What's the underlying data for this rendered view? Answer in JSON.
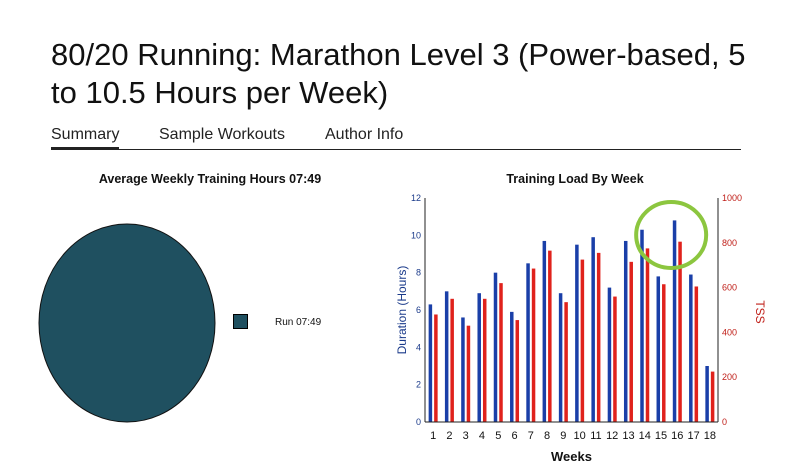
{
  "page": {
    "title": "80/20 Running: Marathon Level 3 (Power-based, 5 to 10.5 Hours per Week)"
  },
  "tabs": [
    {
      "label": "Summary",
      "active": true
    },
    {
      "label": "Sample Workouts",
      "active": false
    },
    {
      "label": "Author Info",
      "active": false
    }
  ],
  "pie_panel": {
    "title": "Average Weekly Training Hours 07:49",
    "legend_label": "Run 07:49",
    "color": "#1f5060"
  },
  "chart_data": [
    {
      "type": "pie",
      "title": "Average Weekly Training Hours 07:49",
      "slices": [
        {
          "name": "Run",
          "label": "Run 07:49",
          "value": 100
        }
      ]
    },
    {
      "type": "bar",
      "title": "Training Load By Week",
      "xlabel": "Weeks",
      "ylabel": "Duration (Hours)",
      "y2label": "TSS",
      "categories": [
        "1",
        "2",
        "3",
        "4",
        "5",
        "6",
        "7",
        "8",
        "9",
        "10",
        "11",
        "12",
        "13",
        "14",
        "15",
        "16",
        "17",
        "18"
      ],
      "ylim": [
        0,
        12
      ],
      "y2lim": [
        0,
        1000
      ],
      "yticks": [
        "0",
        "2",
        "4",
        "6",
        "8",
        "10",
        "12"
      ],
      "y2ticks": [
        "0",
        "200",
        "400",
        "600",
        "800",
        "1000"
      ],
      "series": [
        {
          "name": "Duration (Hours)",
          "axis": "left",
          "color": "#1a3fa8",
          "values": [
            6.3,
            7.0,
            5.6,
            6.9,
            8.0,
            5.9,
            8.5,
            9.7,
            6.9,
            9.5,
            9.9,
            7.2,
            9.7,
            10.3,
            7.8,
            10.8,
            7.9,
            3.0
          ]
        },
        {
          "name": "TSS",
          "axis": "right",
          "color": "#e0221c",
          "values": [
            480,
            550,
            430,
            550,
            620,
            455,
            685,
            765,
            535,
            725,
            755,
            560,
            715,
            775,
            615,
            805,
            605,
            225
          ]
        }
      ],
      "annotation": {
        "type": "circle",
        "color": "#8cc63f",
        "around_weeks": [
          "15",
          "16"
        ]
      }
    }
  ]
}
